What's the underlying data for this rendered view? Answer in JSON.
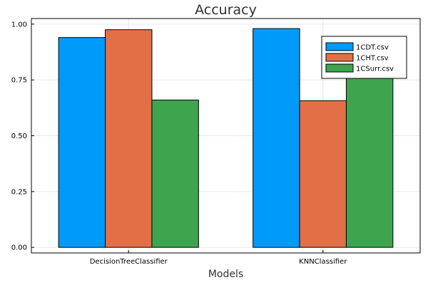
{
  "chart_data": {
    "type": "bar",
    "title": "Accuracy",
    "xlabel": "Models",
    "ylabel": "",
    "categories": [
      "DecisionTreeClassifier",
      "KNNClassifier"
    ],
    "series": [
      {
        "name": "1CDT.csv",
        "values": [
          0.94,
          0.98
        ],
        "color": "#009AFA"
      },
      {
        "name": "1CHT.csv",
        "values": [
          0.975,
          0.657
        ],
        "color": "#E36F47"
      },
      {
        "name": "1CSurr.csv",
        "values": [
          0.66,
          0.853
        ],
        "color": "#3EA44E"
      }
    ],
    "ylim": [
      -0.025,
      1.025
    ],
    "yticks": [
      0.0,
      0.25,
      0.5,
      0.75,
      1.0
    ],
    "ytick_labels": [
      "0.00",
      "0.25",
      "0.50",
      "0.75",
      "1.00"
    ],
    "grid": true,
    "legend_position": "top-right"
  }
}
